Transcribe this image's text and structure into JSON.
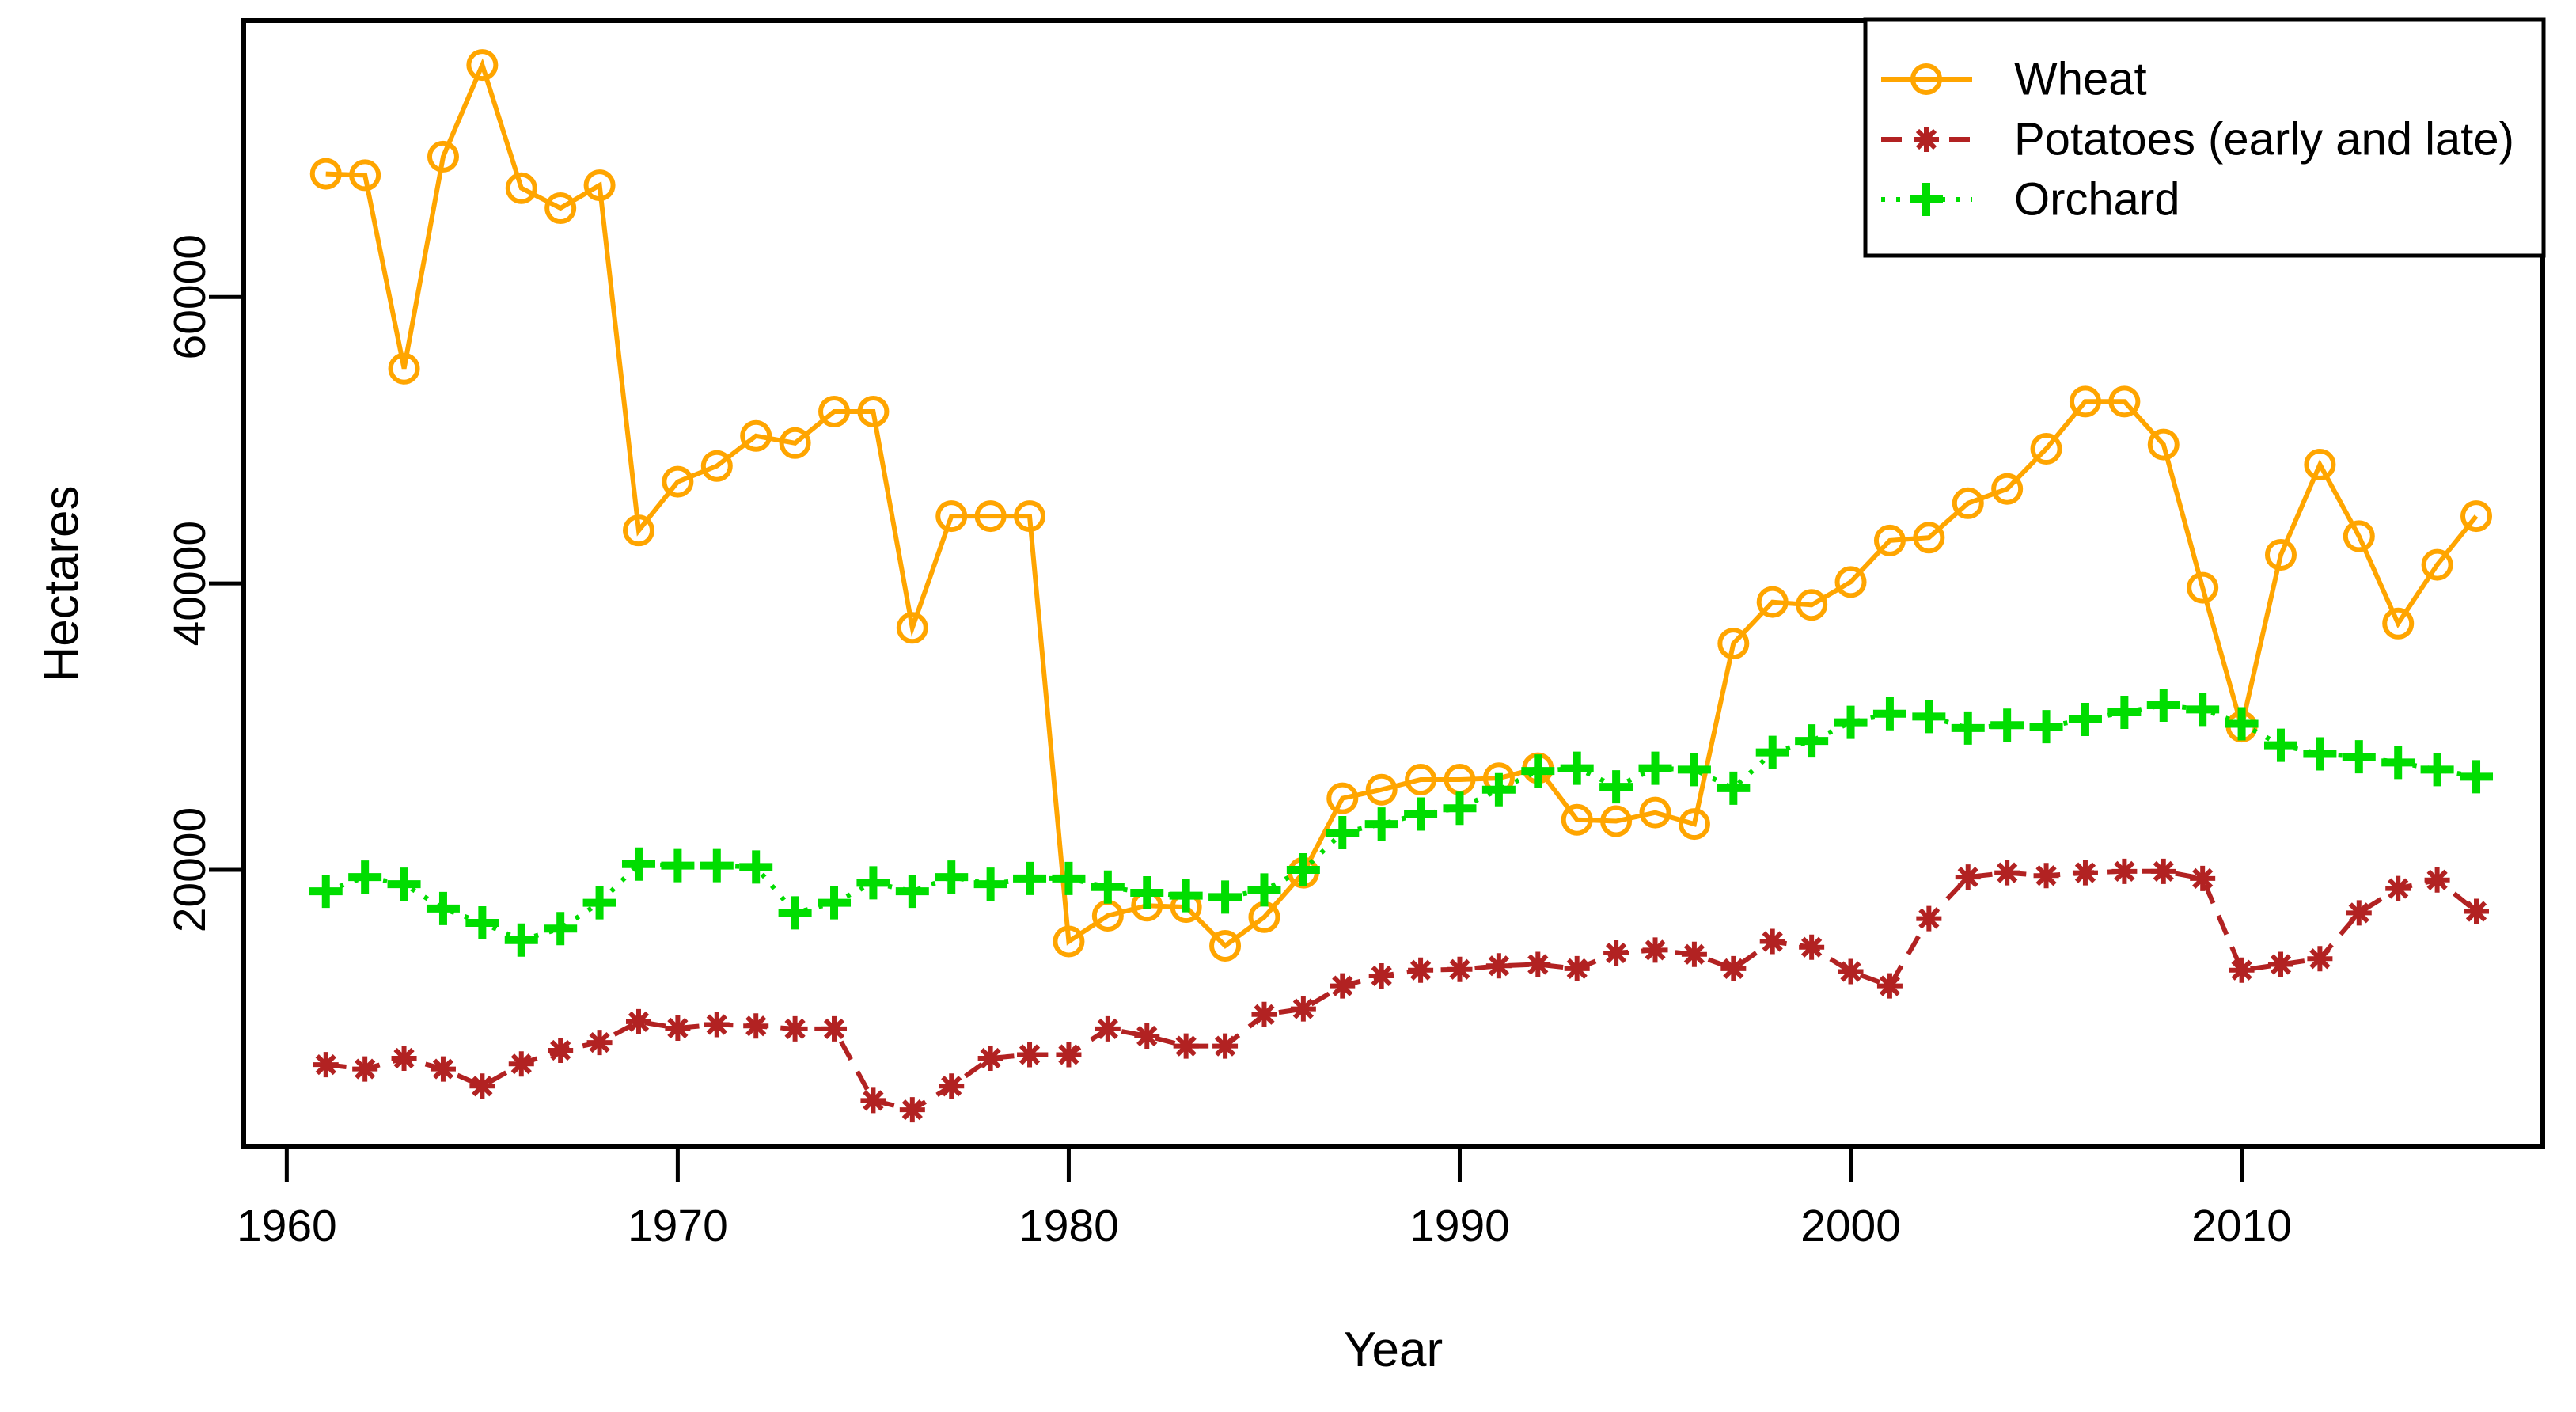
{
  "figure": {
    "background": "#ffffff",
    "border_color": "#000000"
  },
  "chart_data": {
    "type": "line",
    "title": "",
    "xlabel": "Year",
    "ylabel": "Hectares",
    "grid": false,
    "legend_position": "top-right",
    "xlim": [
      1958.9,
      2017.7
    ],
    "ylim": [
      660,
      79300
    ],
    "x_ticks": [
      1960,
      1970,
      1980,
      1990,
      2000,
      2010
    ],
    "y_ticks": [
      20000,
      40000,
      60000
    ],
    "x": [
      1961,
      1962,
      1963,
      1964,
      1965,
      1966,
      1967,
      1968,
      1969,
      1970,
      1971,
      1972,
      1973,
      1974,
      1975,
      1976,
      1977,
      1978,
      1979,
      1980,
      1981,
      1982,
      1983,
      1984,
      1985,
      1986,
      1987,
      1988,
      1989,
      1990,
      1991,
      1992,
      1993,
      1994,
      1995,
      1996,
      1997,
      1998,
      1999,
      2000,
      2001,
      2002,
      2003,
      2004,
      2005,
      2006,
      2007,
      2008,
      2009,
      2010,
      2011,
      2012,
      2013,
      2014,
      2015,
      2016
    ],
    "series": [
      {
        "name": "Wheat",
        "color": "#ffa500",
        "marker": "circle",
        "linestyle": "solid",
        "values": [
          68600,
          68500,
          55000,
          69800,
          76200,
          67600,
          66200,
          67800,
          43700,
          47100,
          48200,
          50300,
          49800,
          52000,
          52000,
          36900,
          44700,
          44700,
          44700,
          15000,
          16800,
          17500,
          17400,
          14700,
          16700,
          19800,
          25000,
          25600,
          26300,
          26300,
          26400,
          27100,
          23500,
          23400,
          24000,
          23200,
          35800,
          38700,
          38500,
          40100,
          43000,
          43200,
          45600,
          46600,
          49400,
          52700,
          52700,
          49700,
          39700,
          30000,
          42000,
          48300,
          43300,
          37200,
          41300,
          44700
        ]
      },
      {
        "name": "Potatoes (early and late)",
        "color": "#b22222",
        "marker": "star",
        "linestyle": "dashed",
        "values": [
          6400,
          6100,
          6850,
          6100,
          4900,
          6450,
          7400,
          7950,
          9400,
          8950,
          9200,
          9100,
          8900,
          8900,
          3900,
          3250,
          4900,
          6850,
          7100,
          7100,
          8900,
          8400,
          7700,
          7700,
          9900,
          10300,
          11900,
          12600,
          13000,
          13050,
          13300,
          13400,
          13100,
          14200,
          14400,
          14100,
          13100,
          15000,
          14600,
          12900,
          11900,
          16600,
          19500,
          19800,
          19600,
          19800,
          19900,
          19900,
          19400,
          13000,
          13400,
          13800,
          17000,
          18700,
          19300,
          17100
        ]
      },
      {
        "name": "Orchard",
        "color": "#00dd00",
        "marker": "plus",
        "linestyle": "dotted",
        "values": [
          18500,
          19500,
          19000,
          17300,
          16300,
          15100,
          15900,
          17700,
          20400,
          20300,
          20300,
          20200,
          17000,
          17700,
          19100,
          18500,
          19500,
          19000,
          19400,
          19400,
          18800,
          18400,
          18200,
          18100,
          18600,
          20000,
          22600,
          23200,
          23900,
          24300,
          25600,
          26900,
          27100,
          25800,
          27100,
          27000,
          25700,
          28200,
          29000,
          30300,
          30900,
          30700,
          29900,
          30100,
          30000,
          30500,
          31000,
          31500,
          31200,
          30200,
          28700,
          28100,
          27900,
          27500,
          27000,
          26500
        ]
      }
    ]
  }
}
